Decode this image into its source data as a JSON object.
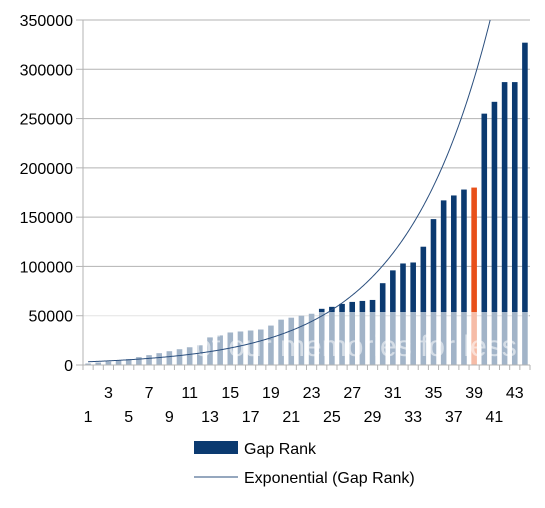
{
  "chart_data": {
    "type": "bar",
    "title": "",
    "xlabel": "",
    "ylabel": "",
    "ylim": [
      0,
      350000
    ],
    "yticks": [
      0,
      50000,
      100000,
      150000,
      200000,
      250000,
      300000,
      350000
    ],
    "ytick_labels": [
      "0",
      "50000",
      "100000",
      "150000",
      "200000",
      "250000",
      "300000",
      "350000"
    ],
    "categories": [
      "1",
      "2",
      "3",
      "4",
      "5",
      "6",
      "7",
      "8",
      "9",
      "10",
      "11",
      "12",
      "13",
      "14",
      "15",
      "16",
      "17",
      "18",
      "19",
      "20",
      "21",
      "22",
      "23",
      "24",
      "25",
      "26",
      "27",
      "28",
      "29",
      "30",
      "31",
      "32",
      "33",
      "34",
      "35",
      "36",
      "37",
      "38",
      "39",
      "40",
      "41",
      "42",
      "43",
      "44"
    ],
    "x_tick_labels_shown": [
      "1",
      "3",
      "5",
      "7",
      "9",
      "11",
      "13",
      "15",
      "17",
      "19",
      "21",
      "23",
      "25",
      "27",
      "29",
      "31",
      "33",
      "35",
      "37",
      "39",
      "41",
      "43"
    ],
    "series": [
      {
        "name": "Gap Rank",
        "color": "#0b3a70",
        "values": [
          1500,
          2500,
          3500,
          4500,
          6000,
          8000,
          10000,
          12000,
          14000,
          16000,
          18000,
          20000,
          28000,
          30000,
          33000,
          34000,
          35000,
          36000,
          40000,
          46000,
          48000,
          50000,
          52000,
          57000,
          59000,
          62000,
          64000,
          65000,
          66000,
          83000,
          96000,
          103000,
          104000,
          120000,
          148000,
          167000,
          172000,
          178000,
          180000,
          255000,
          267000,
          287000,
          287000,
          327000
        ]
      }
    ],
    "highlight": {
      "category": "39",
      "color": "#e8501a"
    },
    "trendline": {
      "name": "Exponential (Gap Rank)",
      "type": "exponential",
      "color": "#2b4f7e",
      "a": 2950,
      "b": 0.1177
    },
    "watermark_text": "of our memories for less",
    "grid": true,
    "legend_position": "bottom",
    "legend": [
      {
        "label": "Gap Rank",
        "kind": "bar",
        "color": "#0b3a70"
      },
      {
        "label": "Exponential (Gap Rank)",
        "kind": "line",
        "color": "#2b4f7e"
      }
    ]
  }
}
